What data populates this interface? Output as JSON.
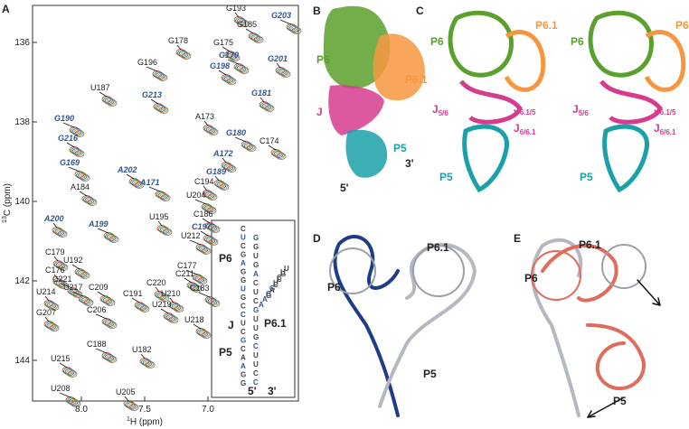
{
  "panel_a": {
    "label": "A",
    "x_axis": {
      "sup": "1",
      "text": "H (ppm)"
    },
    "y_axis": {
      "sup": "13",
      "text": "C (ppm)"
    },
    "xticks": [
      {
        "value": 8,
        "label": "8.0"
      },
      {
        "value": 7.5,
        "label": "7.5"
      },
      {
        "value": 7,
        "label": "7.0"
      }
    ],
    "yticks": [
      136,
      138,
      140,
      142,
      144
    ],
    "peaks": [
      "G193",
      "G185",
      "G203",
      "G178",
      "G175",
      "G170",
      "G201",
      "G198",
      "G196",
      "G181",
      "G213",
      "G190",
      "A173",
      "G216",
      "G180",
      "A172",
      "C174",
      "G169",
      "G189",
      "A202",
      "A171",
      "C194",
      "A184",
      "U204",
      "A200",
      "C186",
      "A199",
      "U195",
      "C197",
      "U212",
      "C179",
      "U192",
      "C177",
      "C176",
      "C211",
      "C221",
      "C220",
      "C209",
      "U217",
      "U210",
      "C191",
      "C183",
      "U214",
      "U219",
      "C206",
      "G207",
      "U218",
      "C188",
      "U182",
      "U215",
      "U208",
      "U205",
      "U187"
    ],
    "inset": {
      "labels": [
        "P6",
        "J",
        "P6.1",
        "P5",
        "5'",
        "3'"
      ],
      "strand_left": [
        "C",
        "U",
        "C",
        "G",
        "A",
        "G",
        "G",
        "U",
        "G",
        "C",
        "C",
        "U",
        "C",
        "G",
        "C",
        "A",
        "A",
        "G",
        "G"
      ],
      "strand_right": [
        "G",
        "G",
        "U",
        "G",
        "A",
        "C",
        "U",
        "C",
        "G",
        "U",
        "U",
        "G",
        "C",
        "U",
        "U",
        "C",
        "C"
      ],
      "branch": [
        "A",
        "A",
        "G",
        "G",
        "U",
        "C",
        "U",
        "U",
        "G",
        "C",
        "C",
        "A",
        "G"
      ]
    }
  },
  "panel_b": {
    "label": "B",
    "texts": [
      "P6",
      "P6.1",
      "J",
      "P5",
      "3'",
      "5'"
    ]
  },
  "panel_c": {
    "label": "C",
    "texts": [
      "P6",
      "P6.1",
      "P5"
    ],
    "junctions": [
      {
        "base": "J",
        "sub": "5/6"
      },
      {
        "base": "J",
        "sub": "6.1/5"
      },
      {
        "base": "J",
        "sub": "6/6.1"
      }
    ]
  },
  "panel_d": {
    "label": "D",
    "texts": [
      "P6.1",
      "P6",
      "P5"
    ]
  },
  "panel_e": {
    "label": "E",
    "texts": [
      "P6.1",
      "P6",
      "P5"
    ]
  }
}
